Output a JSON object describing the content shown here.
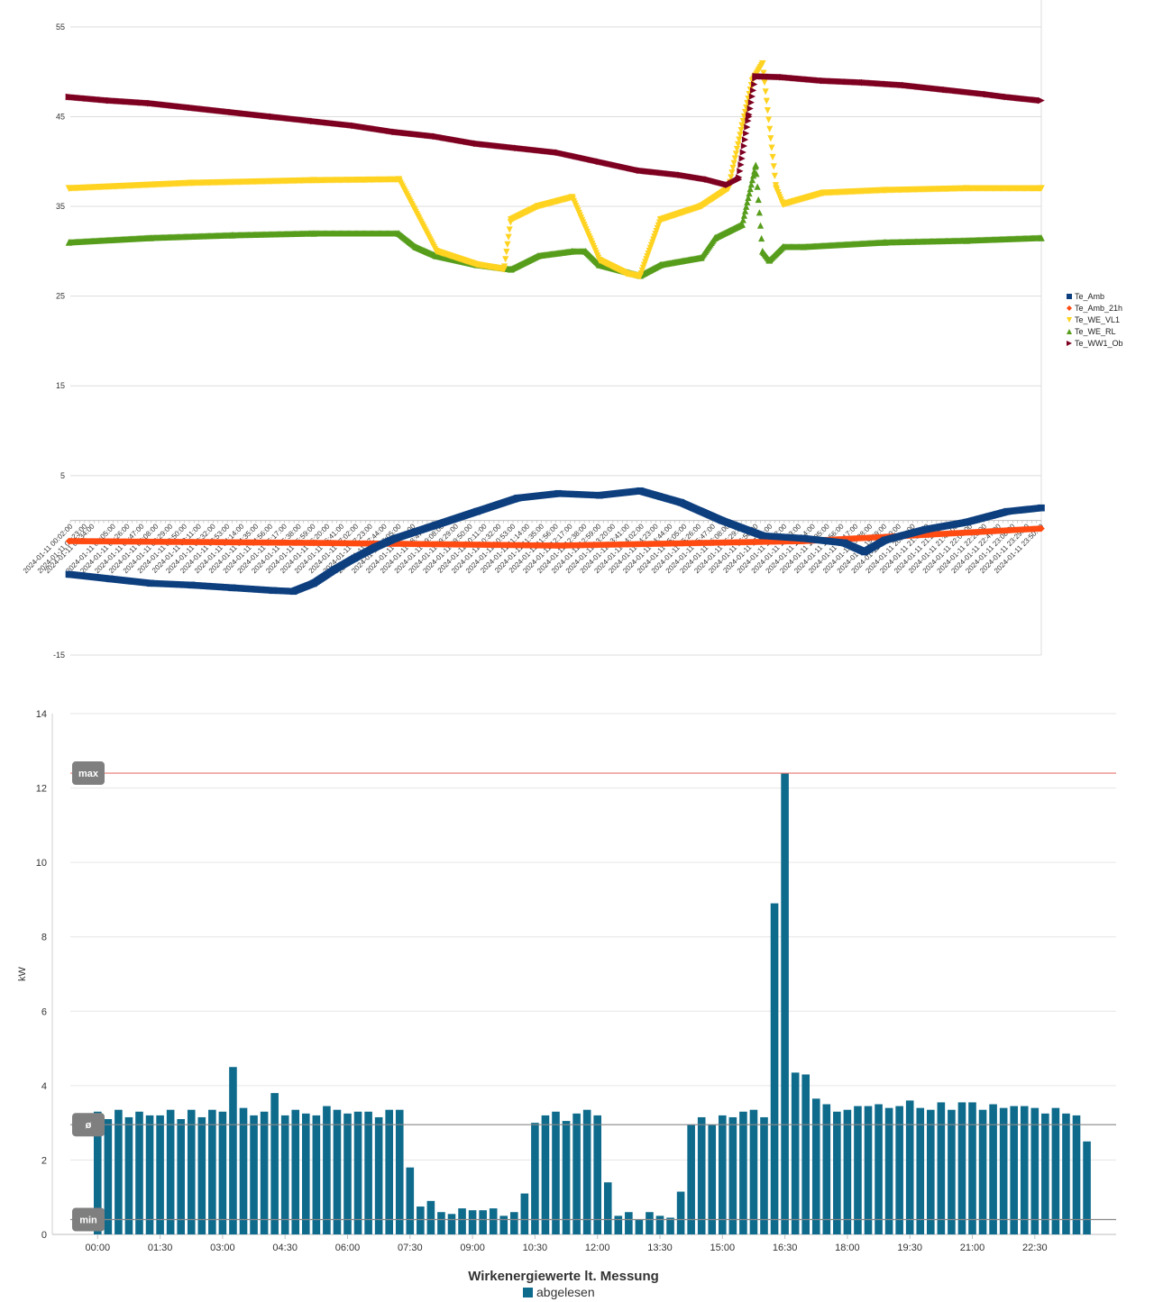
{
  "chart_data": [
    {
      "type": "scatter",
      "ylim": [
        -15,
        58
      ],
      "yticks": [
        55,
        45,
        35,
        25,
        15,
        5,
        -15
      ],
      "x_start": "2024-01-11 00:02:00",
      "x_end": "2024-01-11 23:50:00",
      "x_tick_labels": [
        "2024-01-11 00:02:00",
        "2024-01-11 00:23:00",
        "2024-01-11 00:34:00",
        "2024-01-11 01:05:00",
        "2024-01-11 01:26:00",
        "2024-01-11 01:47:00",
        "2024-01-11 02:08:00",
        "2024-01-11 02:29:00",
        "2024-01-11 02:50:00",
        "2024-01-11 03:11:00",
        "2024-01-11 03:32:00",
        "2024-01-11 03:53:00",
        "2024-01-11 04:14:00",
        "2024-01-11 04:35:00",
        "2024-01-11 04:56:00",
        "2024-01-11 05:17:00",
        "2024-01-11 05:38:00",
        "2024-01-11 05:59:00",
        "2024-01-11 06:20:00",
        "2024-01-11 06:41:00",
        "2024-01-11 07:02:00",
        "2024-01-11 07:23:00",
        "2024-01-11 07:44:00",
        "2024-01-11 08:05:00",
        "2024-01-11 08:26:00",
        "2024-01-11 08:47:00",
        "2024-01-11 09:08:00",
        "2024-01-11 09:29:00",
        "2024-01-11 09:50:00",
        "2024-01-11 10:11:00",
        "2024-01-11 10:32:00",
        "2024-01-11 10:53:00",
        "2024-01-11 11:14:00",
        "2024-01-11 11:35:00",
        "2024-01-11 11:56:00",
        "2024-01-11 12:17:00",
        "2024-01-11 12:38:00",
        "2024-01-11 12:59:00",
        "2024-01-11 13:20:00",
        "2024-01-11 13:41:00",
        "2024-01-11 14:02:00",
        "2024-01-11 14:23:00",
        "2024-01-11 14:44:00",
        "2024-01-11 15:05:00",
        "2024-01-11 15:26:00",
        "2024-01-11 15:47:00",
        "2024-01-11 16:08:00",
        "2024-01-11 16:29:00",
        "2024-01-11 16:50:00",
        "2024-01-11 17:11:00",
        "2024-01-11 17:32:00",
        "2024-01-11 17:53:00",
        "2024-01-11 18:14:00",
        "2024-01-11 18:35:00",
        "2024-01-11 18:56:00",
        "2024-01-11 19:17:00",
        "2024-01-11 19:38:00",
        "2024-01-11 19:59:00",
        "2024-01-11 20:20:00",
        "2024-01-11 20:41:00",
        "2024-01-11 21:02:00",
        "2024-01-11 21:23:00",
        "2024-01-11 21:44:00",
        "2024-01-11 22:05:00",
        "2024-01-11 22:26:00",
        "2024-01-11 22:47:00",
        "2024-01-11 23:08:00",
        "2024-01-11 23:29:00",
        "2024-01-11 23:50:00"
      ],
      "legend_position": "right",
      "grid": true,
      "series": [
        {
          "name": "Te_Amb",
          "color": "#0d3f7f",
          "marker": "square",
          "x": [
            "00:00",
            "01:00",
            "02:00",
            "03:00",
            "04:00",
            "05:00",
            "05:30",
            "06:00",
            "06:30",
            "07:00",
            "07:30",
            "08:00",
            "09:00",
            "10:00",
            "11:00",
            "12:00",
            "13:00",
            "14:00",
            "15:00",
            "16:00",
            "17:00",
            "18:00",
            "19:00",
            "19:30",
            "20:00",
            "21:00",
            "22:00",
            "23:00",
            "23:50"
          ],
          "y": [
            -6,
            -6.5,
            -7,
            -7.2,
            -7.5,
            -7.8,
            -7.9,
            -7,
            -5.5,
            -4.2,
            -3,
            -2,
            -0.5,
            1,
            2.5,
            3,
            2.8,
            3.3,
            2,
            0,
            -1.7,
            -2,
            -2.5,
            -3.5,
            -2.2,
            -1,
            -0.2,
            1,
            1.4
          ]
        },
        {
          "name": "Te_Amb_21h",
          "color": "#ff4a12",
          "marker": "diamond",
          "x": [
            "00:00",
            "06:00",
            "12:00",
            "18:00",
            "21:00",
            "23:50"
          ],
          "y": [
            -2.3,
            -2.5,
            -2.8,
            -2.3,
            -1.6,
            -0.9
          ]
        },
        {
          "name": "Te_WE_VL1",
          "color": "#ffd320",
          "marker": "triangle-down",
          "x": [
            "00:00",
            "03:00",
            "06:00",
            "08:05",
            "09:00",
            "10:00",
            "10:40",
            "10:50",
            "11:30",
            "12:20",
            "13:00",
            "13:40",
            "14:00",
            "14:30",
            "15:30",
            "16:10",
            "16:30",
            "16:45",
            "17:00",
            "17:20",
            "17:30",
            "18:30",
            "20:00",
            "22:00",
            "23:50"
          ],
          "y": [
            37,
            37.6,
            37.9,
            38,
            30,
            28.5,
            28,
            33.5,
            35,
            36,
            29,
            27.5,
            27.2,
            33.5,
            35,
            37,
            44,
            49,
            50.9,
            37,
            35.2,
            36.5,
            36.8,
            37,
            37
          ]
        },
        {
          "name": "Te_WE_RL",
          "color": "#579d1c",
          "marker": "triangle-up",
          "x": [
            "00:00",
            "02:00",
            "04:00",
            "06:00",
            "08:05",
            "08:30",
            "09:00",
            "10:00",
            "10:50",
            "11:30",
            "12:20",
            "12:40",
            "13:00",
            "14:00",
            "14:30",
            "15:30",
            "15:50",
            "16:30",
            "16:50",
            "17:00",
            "17:10",
            "17:30",
            "18:00",
            "20:00",
            "22:00",
            "23:50"
          ],
          "y": [
            31,
            31.5,
            31.8,
            32,
            32,
            30.5,
            29.5,
            28.5,
            28,
            29.5,
            30,
            30,
            28.5,
            27.3,
            28.5,
            29.3,
            31.5,
            33,
            39.6,
            30,
            29,
            30.5,
            30.5,
            31,
            31.2,
            31.5
          ]
        },
        {
          "name": "Te_WW1_Ob",
          "color": "#7e0021",
          "marker": "triangle-right",
          "x": [
            "00:00",
            "01:00",
            "02:00",
            "03:00",
            "04:00",
            "05:00",
            "06:00",
            "07:00",
            "08:00",
            "09:00",
            "10:00",
            "11:00",
            "12:00",
            "13:00",
            "14:00",
            "15:00",
            "15:40",
            "16:10",
            "16:25",
            "16:40",
            "16:50",
            "17:30",
            "18:30",
            "19:30",
            "20:30",
            "21:30",
            "22:30",
            "23:00",
            "23:50"
          ],
          "y": [
            47.2,
            46.8,
            46.5,
            46,
            45.5,
            45,
            44.5,
            44,
            43.3,
            42.8,
            42,
            41.5,
            41,
            40,
            39,
            38.5,
            38,
            37.4,
            38,
            45,
            49.5,
            49.4,
            49,
            48.8,
            48.5,
            48,
            47.5,
            47.2,
            46.8
          ]
        }
      ]
    },
    {
      "type": "bar",
      "title": "Wirkenergiewerte lt. Messung",
      "ylabel": "kW",
      "ylim": [
        0,
        14
      ],
      "yticks": [
        0,
        2,
        4,
        6,
        8,
        10,
        12,
        14
      ],
      "x_tick_labels": [
        "00:00",
        "01:30",
        "03:00",
        "04:30",
        "06:00",
        "07:30",
        "09:00",
        "10:30",
        "12:00",
        "13:30",
        "15:00",
        "16:30",
        "18:00",
        "19:30",
        "21:00",
        "22:30"
      ],
      "grid": true,
      "legend_position": "bottom",
      "reference_lines": [
        {
          "label": "max",
          "value": 12.4,
          "color": "#e8746e"
        },
        {
          "label": "ø",
          "value": 2.95,
          "color": "#888888"
        },
        {
          "label": "min",
          "value": 0.4,
          "color": "#888888"
        }
      ],
      "series": [
        {
          "name": "abgelesen",
          "color": "#0f6b8c",
          "values": [
            3.3,
            3.1,
            3.35,
            3.15,
            3.3,
            3.2,
            3.2,
            3.35,
            3.1,
            3.35,
            3.15,
            3.35,
            3.3,
            4.5,
            3.4,
            3.2,
            3.3,
            3.8,
            3.2,
            3.35,
            3.25,
            3.2,
            3.45,
            3.35,
            3.25,
            3.3,
            3.3,
            3.15,
            3.35,
            3.35,
            1.8,
            0.75,
            0.9,
            0.6,
            0.55,
            0.7,
            0.65,
            0.65,
            0.7,
            0.5,
            0.6,
            1.1,
            3.0,
            3.2,
            3.3,
            3.05,
            3.25,
            3.35,
            3.2,
            1.4,
            0.5,
            0.6,
            0.4,
            0.6,
            0.5,
            0.45,
            1.15,
            2.95,
            3.15,
            2.95,
            3.2,
            3.15,
            3.3,
            3.35,
            3.15,
            8.9,
            12.4,
            4.35,
            4.3,
            3.65,
            3.5,
            3.3,
            3.35,
            3.45,
            3.45,
            3.5,
            3.4,
            3.45,
            3.6,
            3.4,
            3.35,
            3.55,
            3.35,
            3.55,
            3.55,
            3.35,
            3.5,
            3.4,
            3.45,
            3.45,
            3.4,
            3.25,
            3.4,
            3.25,
            3.2,
            2.5
          ]
        }
      ]
    }
  ]
}
